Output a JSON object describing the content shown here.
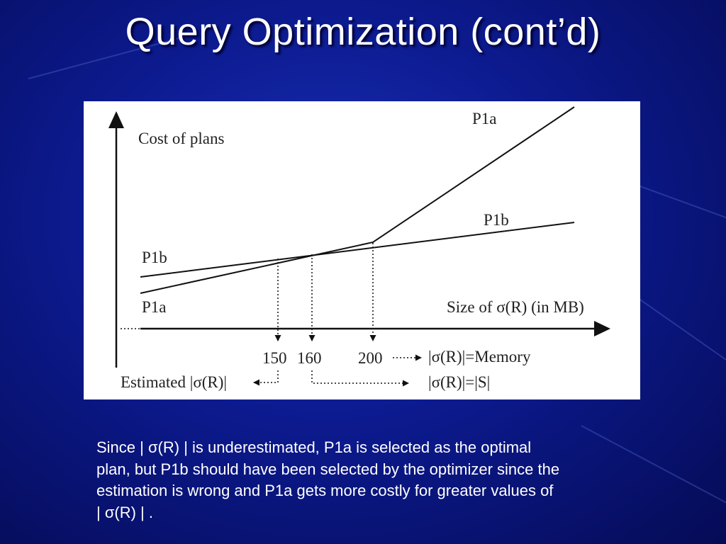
{
  "slide": {
    "title": "Query Optimization (cont’d)"
  },
  "diagram": {
    "y_axis_label": "Cost of plans",
    "x_axis_label": "Size of σ(R) (in MB)",
    "line_label_p1a_top": "P1a",
    "line_label_p1b_top": "P1b",
    "line_label_p1b_left": "P1b",
    "line_label_p1a_left": "P1a",
    "tick_150": "150",
    "tick_160": "160",
    "tick_200": "200",
    "memory_label": "|σ(R)|=Memory",
    "estimated_label": "Estimated |σ(R)|",
    "s_label": "|σ(R)|=|S|"
  },
  "caption": {
    "lines": [
      "Since | σ(R) | is underestimated, P1a is selected as the optimal",
      "plan, but P1b should have been selected by the optimizer since the",
      "estimation is wrong and P1a gets more costly for greater values of",
      "| σ(R) | ."
    ]
  }
}
